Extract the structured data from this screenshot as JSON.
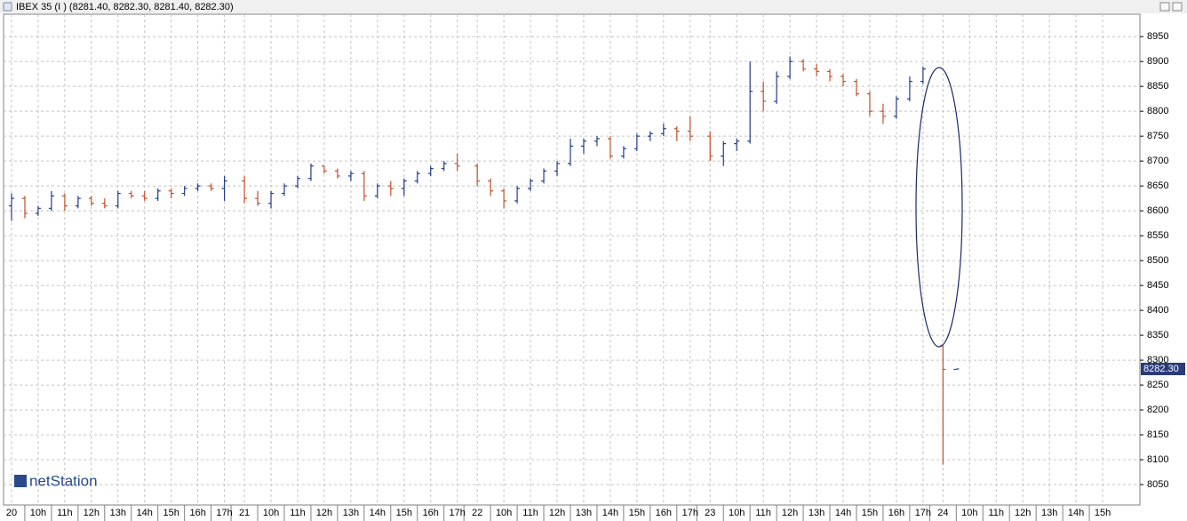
{
  "chart_data": {
    "type": "ohlc",
    "title": "IBEX 35 (I ) (8281.40, 8282.30, 8281.40, 8282.30)",
    "logo": "netStation",
    "up_color": "#1f3c8c",
    "down_color": "#c0502a",
    "grid": true,
    "last_price": {
      "value": 8282.3,
      "label": "8282.30"
    },
    "xlim": [
      -0.3,
      42.4
    ],
    "ylim": [
      8009,
      8995
    ],
    "yticks": [
      8050,
      8100,
      8150,
      8200,
      8250,
      8300,
      8350,
      8400,
      8450,
      8500,
      8550,
      8600,
      8650,
      8700,
      8750,
      8800,
      8850,
      8900,
      8950
    ],
    "xticks": [
      {
        "value": 0,
        "label": "20"
      },
      {
        "value": 1,
        "label": "10h"
      },
      {
        "value": 2,
        "label": "11h"
      },
      {
        "value": 3,
        "label": "12h"
      },
      {
        "value": 4,
        "label": "13h"
      },
      {
        "value": 5,
        "label": "14h"
      },
      {
        "value": 6,
        "label": "15h"
      },
      {
        "value": 7,
        "label": "16h"
      },
      {
        "value": 8,
        "label": "17h"
      },
      {
        "value": 8.75,
        "label": "21"
      },
      {
        "value": 9.75,
        "label": "10h"
      },
      {
        "value": 10.75,
        "label": "11h"
      },
      {
        "value": 11.75,
        "label": "12h"
      },
      {
        "value": 12.75,
        "label": "13h"
      },
      {
        "value": 13.75,
        "label": "14h"
      },
      {
        "value": 14.75,
        "label": "15h"
      },
      {
        "value": 15.75,
        "label": "16h"
      },
      {
        "value": 16.75,
        "label": "17h"
      },
      {
        "value": 17.5,
        "label": "22"
      },
      {
        "value": 18.5,
        "label": "10h"
      },
      {
        "value": 19.5,
        "label": "11h"
      },
      {
        "value": 20.5,
        "label": "12h"
      },
      {
        "value": 21.5,
        "label": "13h"
      },
      {
        "value": 22.5,
        "label": "14h"
      },
      {
        "value": 23.5,
        "label": "15h"
      },
      {
        "value": 24.5,
        "label": "16h"
      },
      {
        "value": 25.5,
        "label": "17h"
      },
      {
        "value": 26.25,
        "label": "23"
      },
      {
        "value": 27.25,
        "label": "10h"
      },
      {
        "value": 28.25,
        "label": "11h"
      },
      {
        "value": 29.25,
        "label": "12h"
      },
      {
        "value": 30.25,
        "label": "13h"
      },
      {
        "value": 31.25,
        "label": "14h"
      },
      {
        "value": 32.25,
        "label": "15h"
      },
      {
        "value": 33.25,
        "label": "16h"
      },
      {
        "value": 34.25,
        "label": "17h"
      },
      {
        "value": 35,
        "label": "24"
      },
      {
        "value": 36,
        "label": "10h"
      },
      {
        "value": 37,
        "label": "11h"
      },
      {
        "value": 38,
        "label": "12h"
      },
      {
        "value": 39,
        "label": "13h"
      },
      {
        "value": 40,
        "label": "14h"
      },
      {
        "value": 41,
        "label": "15h"
      }
    ],
    "x": [
      0,
      0.5,
      1,
      1.5,
      2,
      2.5,
      3,
      3.5,
      4,
      4.5,
      5,
      5.5,
      6,
      6.5,
      7,
      7.5,
      8,
      8.75,
      9.25,
      9.75,
      10.25,
      10.75,
      11.25,
      11.75,
      12.25,
      12.75,
      13.25,
      13.75,
      14.25,
      14.75,
      15.25,
      15.75,
      16.25,
      16.75,
      17.5,
      18,
      18.5,
      19,
      19.5,
      20,
      20.5,
      21,
      21.5,
      22,
      22.5,
      23,
      23.5,
      24,
      24.5,
      25,
      25.5,
      26.25,
      26.75,
      27.25,
      27.75,
      28.25,
      28.75,
      29.25,
      29.75,
      30.25,
      30.75,
      31.25,
      31.75,
      32.25,
      32.75,
      33.25,
      33.75,
      34.25,
      35,
      35.5
    ],
    "open": [
      8610,
      8625,
      8595,
      8605,
      8630,
      8610,
      8625,
      8615,
      8610,
      8635,
      8630,
      8625,
      8640,
      8635,
      8645,
      8650,
      8645,
      8660,
      8625,
      8615,
      8635,
      8650,
      8665,
      8690,
      8680,
      8670,
      8675,
      8630,
      8650,
      8645,
      8660,
      8675,
      8685,
      8695,
      8690,
      8660,
      8640,
      8620,
      8645,
      8660,
      8680,
      8695,
      8730,
      8740,
      8745,
      8710,
      8725,
      8750,
      8755,
      8765,
      8760,
      8750,
      8710,
      8735,
      8740,
      8840,
      8820,
      8870,
      8900,
      8885,
      8880,
      8870,
      8860,
      8835,
      8800,
      8790,
      8825,
      8860,
      8330,
      8281.4
    ],
    "high": [
      8635,
      8630,
      8610,
      8640,
      8635,
      8630,
      8630,
      8625,
      8640,
      8640,
      8640,
      8645,
      8645,
      8650,
      8655,
      8655,
      8670,
      8670,
      8640,
      8640,
      8655,
      8670,
      8695,
      8690,
      8685,
      8680,
      8680,
      8655,
      8660,
      8665,
      8680,
      8690,
      8700,
      8715,
      8695,
      8665,
      8645,
      8650,
      8665,
      8685,
      8700,
      8745,
      8745,
      8750,
      8750,
      8730,
      8755,
      8760,
      8775,
      8770,
      8790,
      8760,
      8740,
      8745,
      8900,
      8860,
      8880,
      8910,
      8905,
      8895,
      8885,
      8875,
      8865,
      8840,
      8815,
      8830,
      8870,
      8890,
      8330,
      8282.3
    ],
    "low": [
      8580,
      8585,
      8590,
      8600,
      8600,
      8605,
      8610,
      8605,
      8605,
      8625,
      8620,
      8620,
      8625,
      8630,
      8640,
      8640,
      8620,
      8615,
      8610,
      8605,
      8630,
      8645,
      8660,
      8675,
      8665,
      8660,
      8620,
      8625,
      8630,
      8630,
      8655,
      8670,
      8680,
      8680,
      8650,
      8630,
      8605,
      8615,
      8640,
      8655,
      8670,
      8690,
      8715,
      8730,
      8705,
      8705,
      8720,
      8740,
      8750,
      8740,
      8740,
      8700,
      8690,
      8720,
      8735,
      8800,
      8815,
      8865,
      8880,
      8870,
      8860,
      8850,
      8830,
      8790,
      8775,
      8785,
      8820,
      8855,
      8090,
      8281.4
    ],
    "close": [
      8625,
      8595,
      8605,
      8630,
      8610,
      8625,
      8615,
      8610,
      8635,
      8630,
      8625,
      8640,
      8635,
      8645,
      8650,
      8645,
      8660,
      8625,
      8615,
      8635,
      8650,
      8665,
      8690,
      8680,
      8670,
      8675,
      8630,
      8650,
      8645,
      8660,
      8675,
      8685,
      8695,
      8690,
      8660,
      8640,
      8620,
      8645,
      8660,
      8680,
      8695,
      8730,
      8740,
      8745,
      8710,
      8725,
      8750,
      8755,
      8765,
      8760,
      8750,
      8710,
      8735,
      8740,
      8840,
      8820,
      8870,
      8900,
      8885,
      8880,
      8870,
      8860,
      8835,
      8800,
      8790,
      8825,
      8860,
      8885,
      8281.4,
      8282.3
    ]
  }
}
